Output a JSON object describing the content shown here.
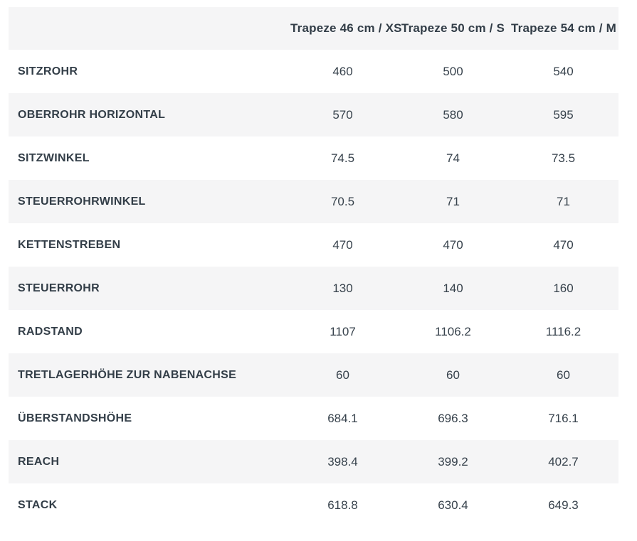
{
  "colors": {
    "background": "#ffffff",
    "stripe": "#f5f5f6",
    "text": "#333e48",
    "value_text": "#37424c"
  },
  "chart_data": {
    "type": "table",
    "title": "",
    "columns": [
      "",
      "Trapeze 46 cm / XS",
      "Trapeze 50 cm / S",
      "Trapeze 54 cm / M"
    ],
    "rows": [
      {
        "label": "SITZROHR",
        "values": [
          "460",
          "500",
          "540"
        ]
      },
      {
        "label": "OBERROHR HORIZONTAL",
        "values": [
          "570",
          "580",
          "595"
        ]
      },
      {
        "label": "SITZWINKEL",
        "values": [
          "74.5",
          "74",
          "73.5"
        ]
      },
      {
        "label": "STEUERROHRWINKEL",
        "values": [
          "70.5",
          "71",
          "71"
        ]
      },
      {
        "label": "KETTENSTREBEN",
        "values": [
          "470",
          "470",
          "470"
        ]
      },
      {
        "label": "STEUERROHR",
        "values": [
          "130",
          "140",
          "160"
        ]
      },
      {
        "label": "RADSTAND",
        "values": [
          "1107",
          "1106.2",
          "1116.2"
        ]
      },
      {
        "label": "TRETLAGERHÖHE ZUR NABENACHSE",
        "values": [
          "60",
          "60",
          "60"
        ]
      },
      {
        "label": "ÜBERSTANDSHÖHE",
        "values": [
          "684.1",
          "696.3",
          "716.1"
        ]
      },
      {
        "label": "REACH",
        "values": [
          "398.4",
          "399.2",
          "402.7"
        ]
      },
      {
        "label": "STACK",
        "values": [
          "618.8",
          "630.4",
          "649.3"
        ]
      }
    ],
    "layout": {
      "grid": false,
      "striped_rows": true,
      "header_position": "top"
    }
  }
}
